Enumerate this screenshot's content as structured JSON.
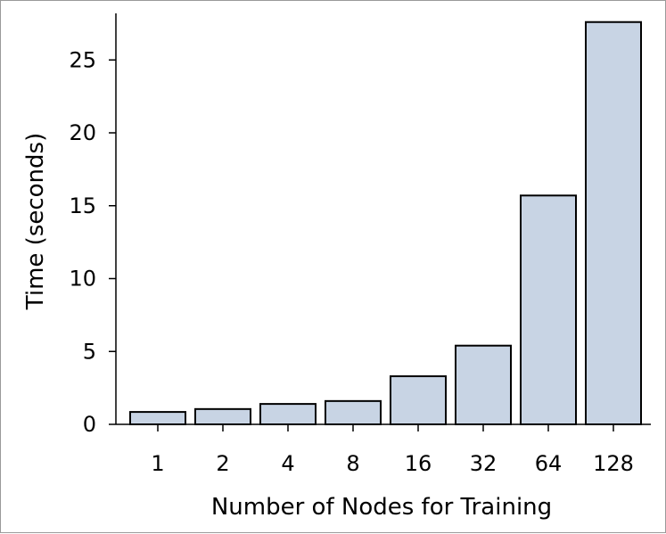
{
  "chart_data": {
    "type": "bar",
    "categories": [
      "1",
      "2",
      "4",
      "8",
      "16",
      "32",
      "64",
      "128"
    ],
    "values": [
      0.85,
      1.05,
      1.4,
      1.6,
      3.3,
      5.4,
      15.7,
      27.6
    ],
    "title": "",
    "xlabel": "Number of Nodes for Training",
    "ylabel": "Time (seconds)",
    "ylim": [
      0,
      28
    ],
    "yticks": [
      0,
      5,
      10,
      15,
      20,
      25
    ],
    "grid": false,
    "legend": "none",
    "colors": {
      "bar_fill": "#c8d4e4",
      "bar_stroke": "#000000",
      "axis": "#000000"
    }
  }
}
